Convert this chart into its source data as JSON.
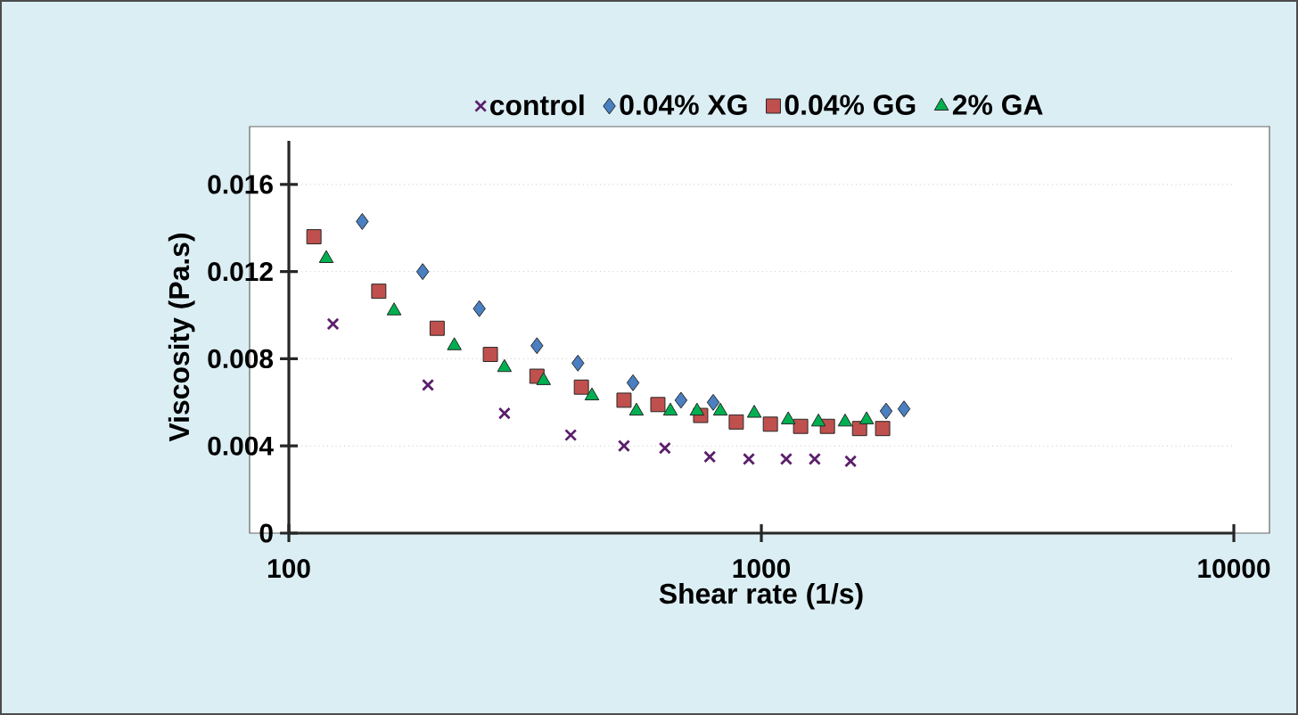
{
  "chart_data": {
    "type": "scatter",
    "xlabel": "Shear rate (1/s)",
    "ylabel": "Viscosity (Pa.s)",
    "log": "x",
    "xlim": [
      100,
      10000
    ],
    "xticks": [
      100,
      1000,
      10000
    ],
    "ylim": [
      0,
      0.018
    ],
    "yticks": [
      0,
      0.004,
      0.008,
      0.012,
      0.016
    ],
    "grid": "y",
    "legend": "top",
    "series": [
      {
        "name": "control",
        "color": "#5b1f6b",
        "marker": "cross",
        "x": [
          124,
          197,
          286,
          395,
          512,
          625,
          778,
          941,
          1129,
          1297,
          1545
        ],
        "values": [
          0.0096,
          0.0068,
          0.0055,
          0.0045,
          0.004,
          0.0039,
          0.0035,
          0.0034,
          0.0034,
          0.0034,
          0.0033
        ]
      },
      {
        "name": "0.04% XG",
        "color": "#4a7fc1",
        "marker": "diamond",
        "x": [
          143,
          192,
          253,
          335,
          409,
          535,
          676,
          791,
          1837,
          2004
        ],
        "values": [
          0.0143,
          0.012,
          0.0103,
          0.0086,
          0.0078,
          0.0069,
          0.0061,
          0.006,
          0.0056,
          0.0057
        ]
      },
      {
        "name": "0.04% GG",
        "color": "#c0504d",
        "marker": "square",
        "x": [
          113,
          155,
          206,
          267,
          335,
          416,
          512,
          604,
          744,
          885,
          1045,
          1211,
          1380,
          1614,
          1806
        ],
        "values": [
          0.0136,
          0.0111,
          0.0094,
          0.0082,
          0.0072,
          0.0067,
          0.0061,
          0.0059,
          0.0054,
          0.0051,
          0.005,
          0.0049,
          0.0049,
          0.0048,
          0.0048
        ]
      },
      {
        "name": "2% GA",
        "color": "#00b050",
        "marker": "triangle",
        "x": [
          120,
          167,
          224,
          286,
          346,
          438,
          544,
          642,
          731,
          819,
          966,
          1140,
          1321,
          1504,
          1670
        ],
        "values": [
          0.0126,
          0.0102,
          0.0086,
          0.0076,
          0.007,
          0.0063,
          0.0056,
          0.0056,
          0.0056,
          0.0056,
          0.0055,
          0.0052,
          0.0051,
          0.0051,
          0.0052
        ]
      }
    ]
  }
}
